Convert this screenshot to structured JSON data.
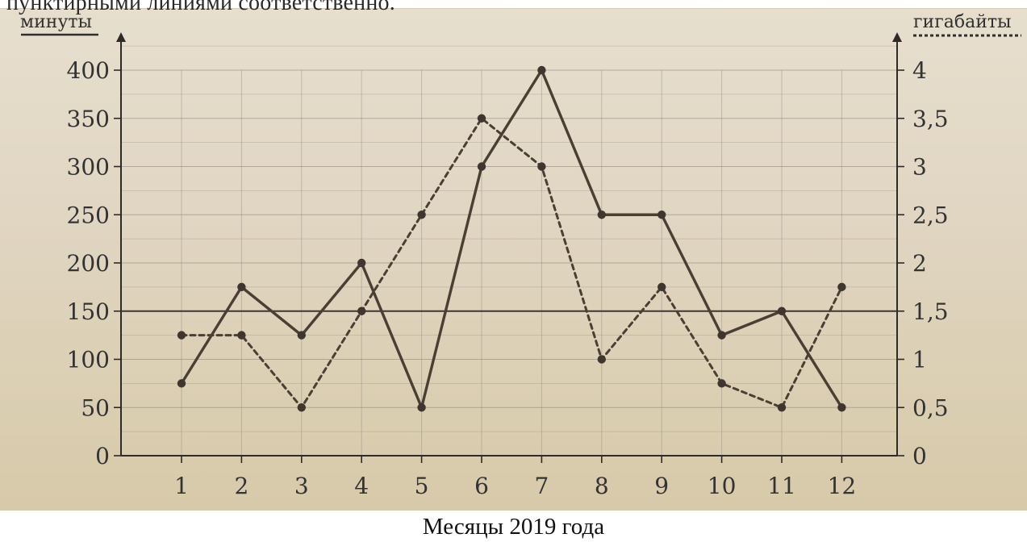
{
  "header_snippet": "пунктирными линиями соответственно.",
  "footer_caption": "Месяцы 2019 года",
  "chart_data": {
    "type": "line",
    "x_categories": [
      "1",
      "2",
      "3",
      "4",
      "5",
      "6",
      "7",
      "8",
      "9",
      "10",
      "11",
      "12"
    ],
    "left_axis_label": "минуты",
    "right_axis_label": "гигабайты",
    "left_ticks": [
      "0",
      "50",
      "100",
      "150",
      "200",
      "250",
      "300",
      "350",
      "400"
    ],
    "right_ticks": [
      "0",
      "0,5",
      "1",
      "1,5",
      "2",
      "2,5",
      "3",
      "3,5",
      "4"
    ],
    "ylim_left": [
      0,
      400
    ],
    "ylim_right": [
      0,
      4
    ],
    "grid": true,
    "reference_line_minutes": 150,
    "series": [
      {
        "values": [
          75,
          175,
          125,
          200,
          50,
          300,
          400,
          250,
          250,
          125,
          150,
          50
        ],
        "axis": "left",
        "style": "solid"
      },
      {
        "values": [
          1.25,
          1.25,
          0.5,
          1.5,
          2.5,
          3.5,
          3.0,
          1.0,
          1.75,
          0.75,
          0.5,
          1.75
        ],
        "axis": "right",
        "style": "dotted"
      }
    ],
    "colors": {
      "line": "#4a3f33",
      "grid": "#8a8278"
    }
  }
}
